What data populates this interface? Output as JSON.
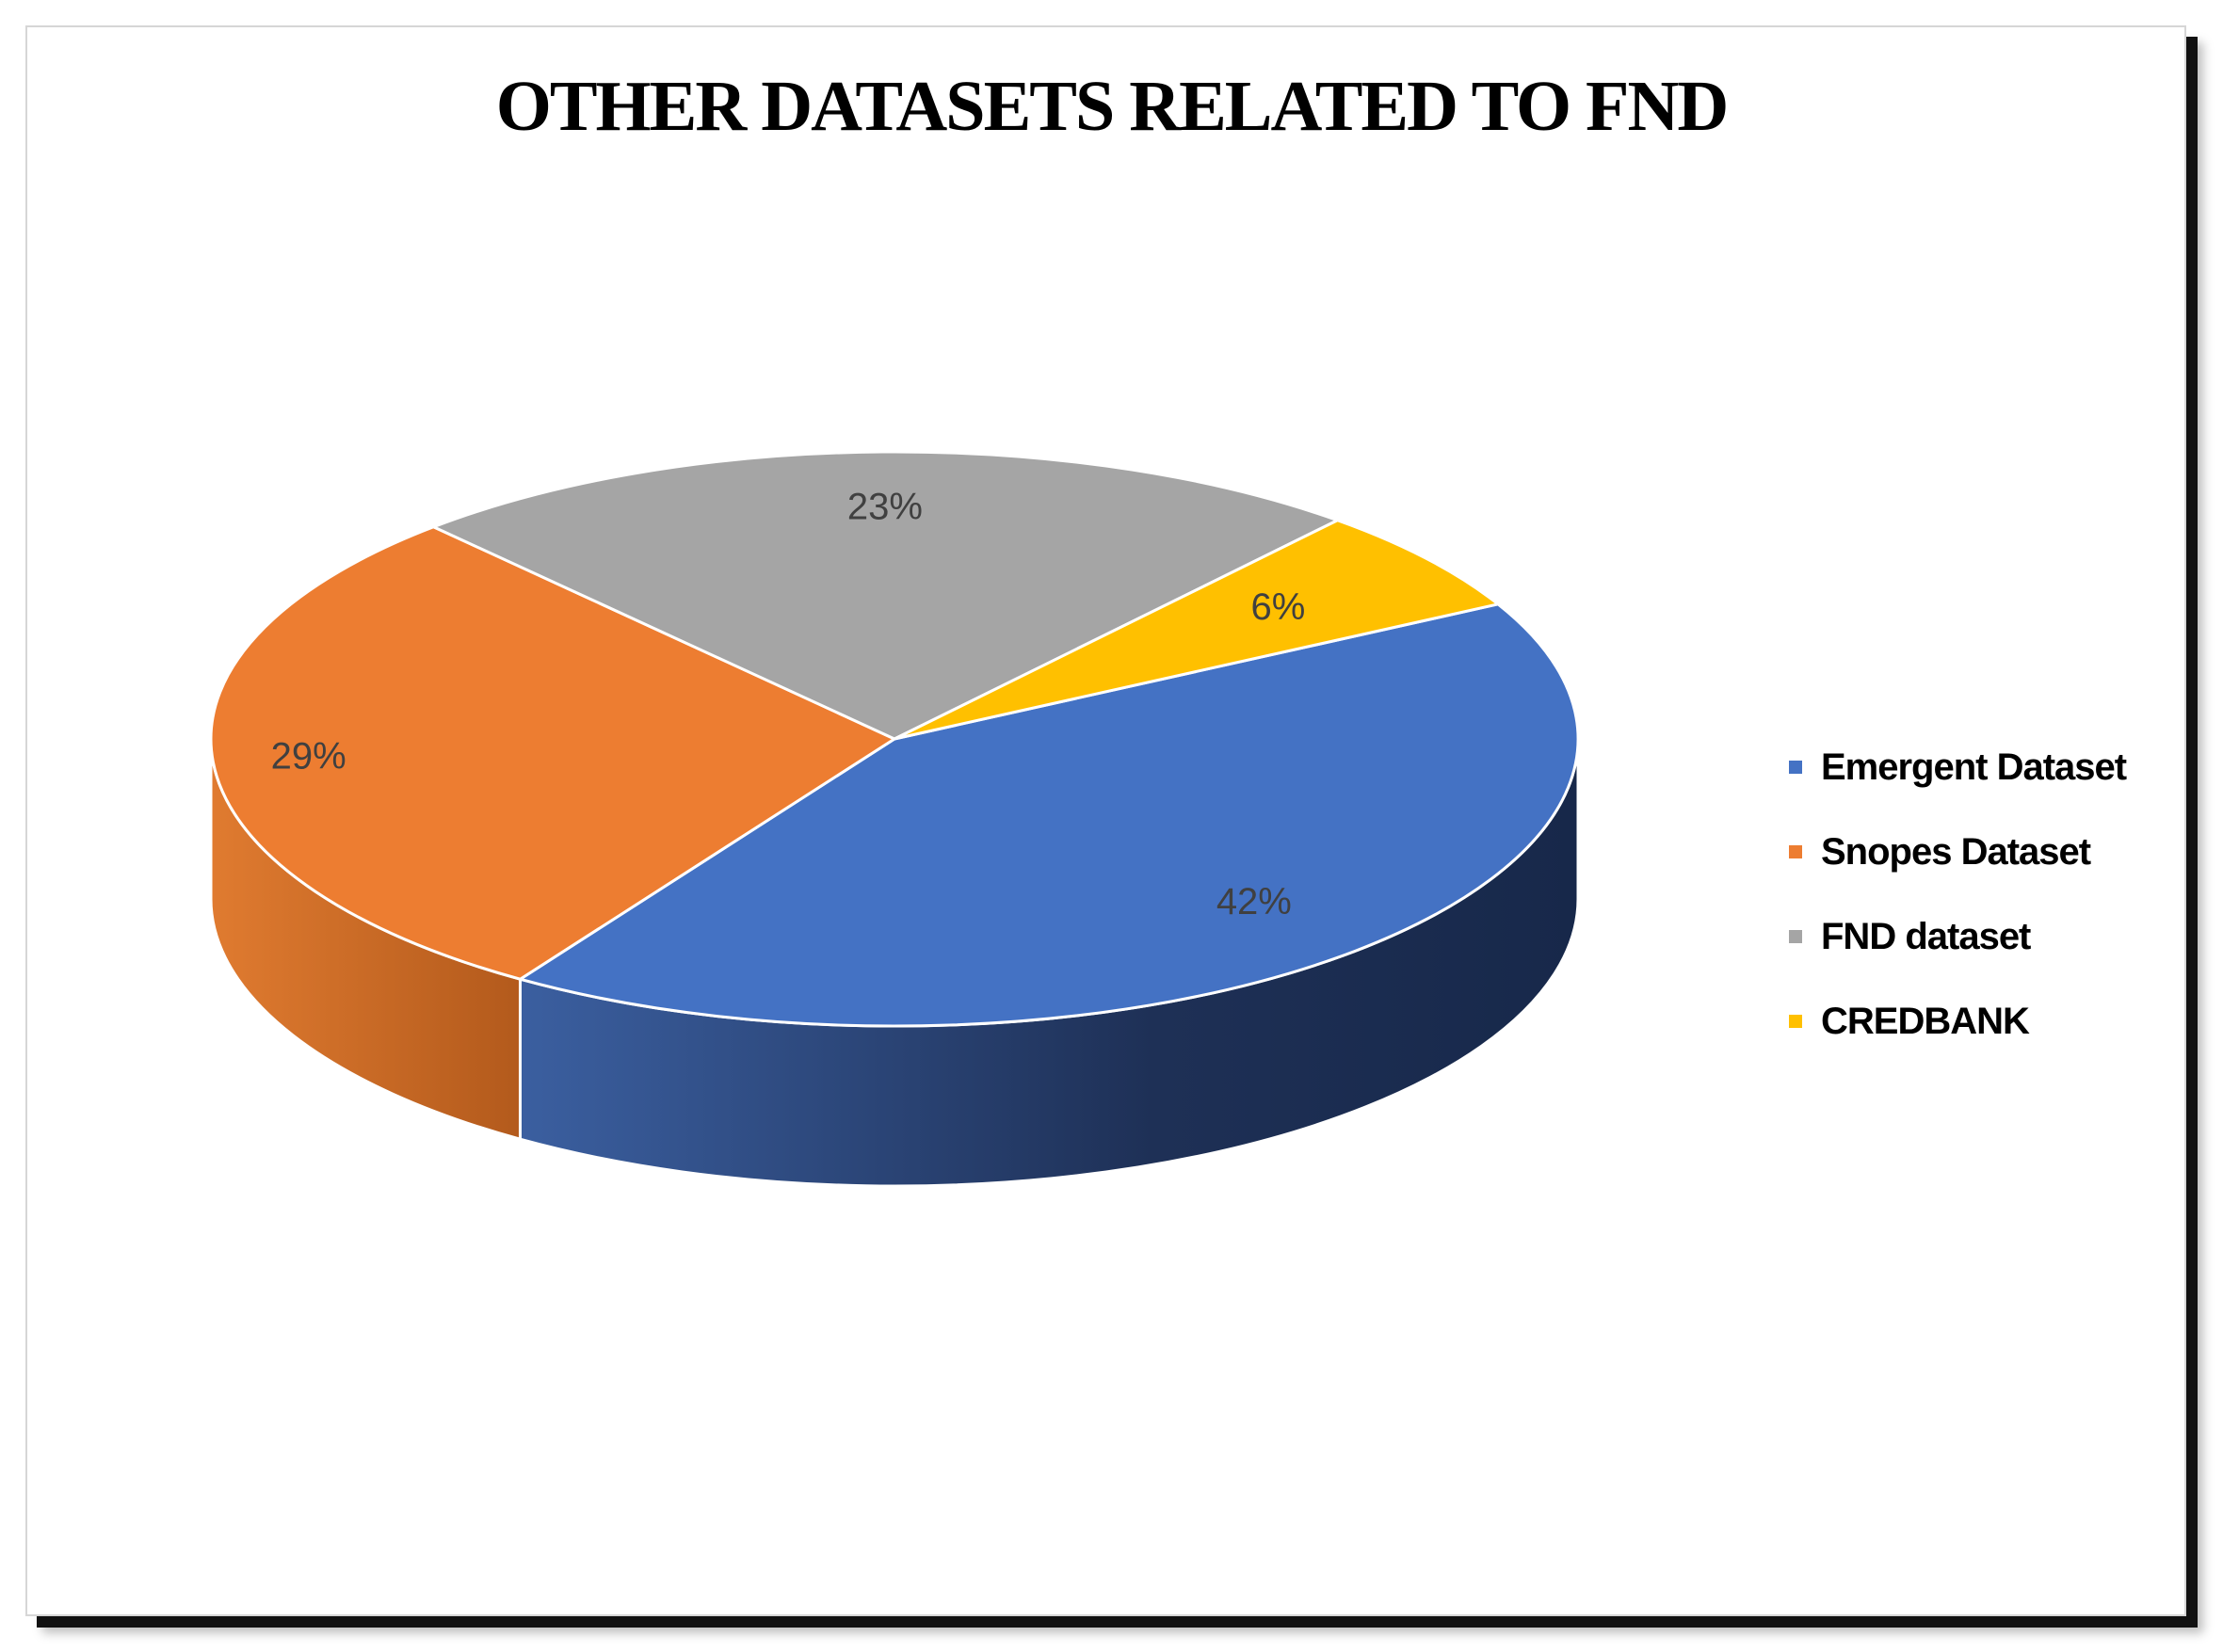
{
  "chart_data": {
    "type": "pie",
    "title": "OTHER DATASETS RELATED TO FND",
    "categories": [
      "Emergent Dataset",
      "Snopes Dataset",
      "FND dataset",
      "CREDBANK"
    ],
    "values": [
      42,
      29,
      23,
      6
    ],
    "labels": [
      "42%",
      "29%",
      "23%",
      "6%"
    ],
    "colors": [
      "#4472C4",
      "#ED7D31",
      "#A5A5A5",
      "#FFC000"
    ],
    "legend_position": "right",
    "style": "3d"
  }
}
